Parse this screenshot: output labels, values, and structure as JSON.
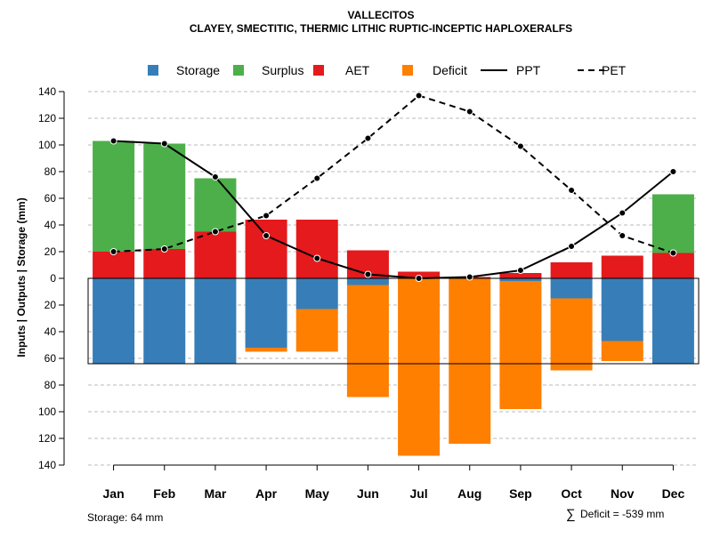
{
  "colors": {
    "storage": "#377EB8",
    "surplus": "#4DAF4A",
    "aet": "#E41A1C",
    "deficit": "#FF7F00",
    "grid": "#bbbbbb",
    "axis": "#000000"
  },
  "chart_data": {
    "type": "bar",
    "title": "VALLECITOS",
    "subtitle": "CLAYEY, SMECTITIC, THERMIC LITHIC RUPTIC-INCEPTIC HAPLOXERALFS",
    "ylabel": "Inputs | Outputs | Storage    (mm)",
    "ylim": [
      -140,
      140
    ],
    "yticks": [
      140,
      120,
      100,
      80,
      60,
      40,
      20,
      0,
      -20,
      -40,
      -60,
      -80,
      -100,
      -120,
      -140
    ],
    "ytick_labels": [
      "140",
      "120",
      "100",
      "80",
      "60",
      "40",
      "20",
      "0",
      "20",
      "40",
      "60",
      "80",
      "100",
      "120",
      "140"
    ],
    "categories": [
      "Jan",
      "Feb",
      "Mar",
      "Apr",
      "May",
      "Jun",
      "Jul",
      "Aug",
      "Sep",
      "Oct",
      "Nov",
      "Dec"
    ],
    "legend": [
      {
        "key": "storage",
        "label": "Storage",
        "kind": "box"
      },
      {
        "key": "surplus",
        "label": "Surplus",
        "kind": "box"
      },
      {
        "key": "aet",
        "label": "AET",
        "kind": "box"
      },
      {
        "key": "deficit",
        "label": "Deficit",
        "kind": "box"
      },
      {
        "key": "ppt",
        "label": "PPT",
        "kind": "solid"
      },
      {
        "key": "pet",
        "label": "PET",
        "kind": "dashed"
      }
    ],
    "series": [
      {
        "name": "AET",
        "values": [
          20,
          22,
          35,
          44,
          44,
          21,
          5,
          1,
          4,
          12,
          17,
          19
        ]
      },
      {
        "name": "Surplus",
        "values": [
          83,
          79,
          40,
          0,
          0,
          0,
          0,
          0,
          0,
          0,
          0,
          44
        ]
      },
      {
        "name": "Storage",
        "values": [
          64,
          64,
          64,
          52,
          23,
          5,
          0,
          0,
          2,
          15,
          47,
          64
        ]
      },
      {
        "name": "Deficit",
        "values": [
          0,
          0,
          0,
          3,
          32,
          84,
          133,
          124,
          96,
          54,
          15,
          0
        ]
      },
      {
        "name": "PPT",
        "values": [
          103,
          101,
          76,
          32,
          15,
          3,
          0,
          1,
          6,
          24,
          49,
          80
        ]
      },
      {
        "name": "PET",
        "values": [
          20,
          22,
          35,
          47,
          75,
          105,
          137,
          125,
          99,
          66,
          32,
          19
        ]
      }
    ],
    "storage_capacity": 64,
    "footnote_left": "Storage: 64 mm",
    "footnote_right_symbol": "∑",
    "footnote_right": "Deficit = -539 mm"
  }
}
